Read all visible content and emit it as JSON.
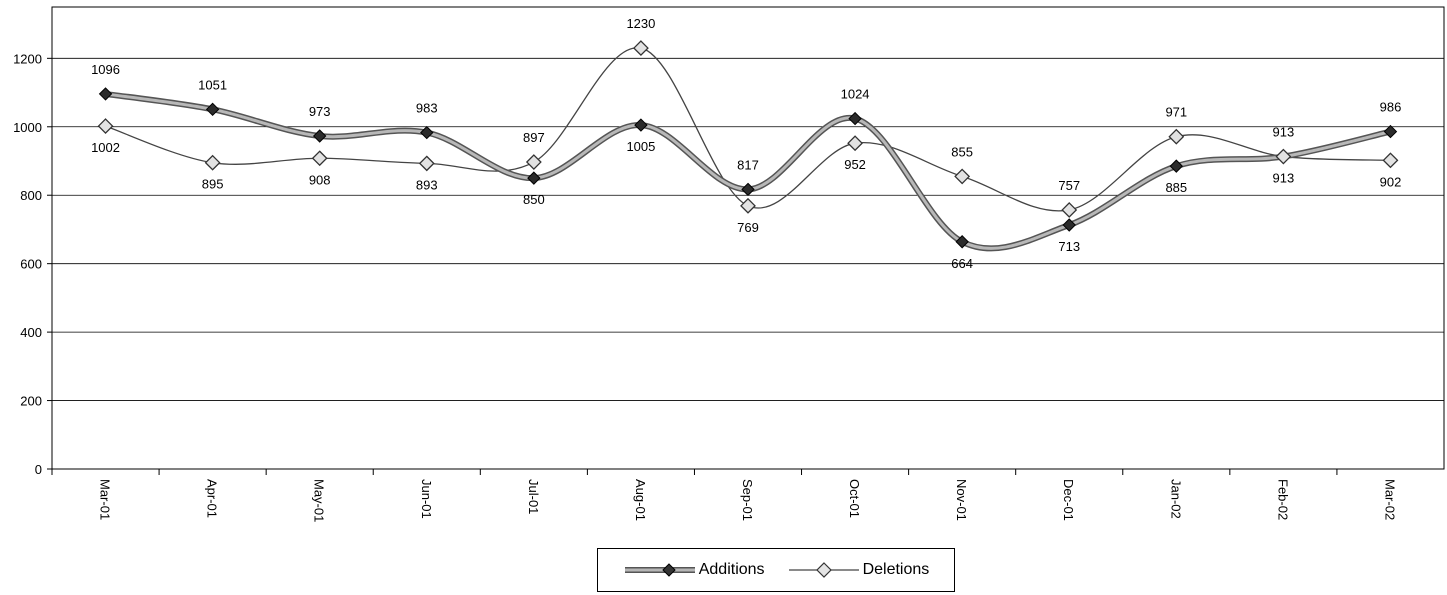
{
  "chart_data": {
    "type": "line",
    "categories": [
      "Mar-01",
      "Apr-01",
      "May-01",
      "Jun-01",
      "Jul-01",
      "Aug-01",
      "Sep-01",
      "Oct-01",
      "Nov-01",
      "Dec-01",
      "Jan-02",
      "Feb-02",
      "Mar-02"
    ],
    "series": [
      {
        "name": "Additions",
        "values": [
          1096,
          1051,
          973,
          983,
          850,
          1005,
          817,
          1024,
          664,
          713,
          885,
          913,
          986
        ],
        "color": "#808080",
        "marker": "filled-diamond"
      },
      {
        "name": "Deletions",
        "values": [
          1002,
          895,
          908,
          893,
          897,
          1230,
          769,
          952,
          855,
          757,
          971,
          913,
          902
        ],
        "color": "#555555",
        "marker": "hollow-diamond"
      }
    ],
    "yticks": [
      "0",
      "200",
      "400",
      "600",
      "800",
      "1000",
      "1200"
    ],
    "ylim": [
      0,
      1350
    ],
    "grid": true,
    "legend_position": "bottom-center"
  }
}
